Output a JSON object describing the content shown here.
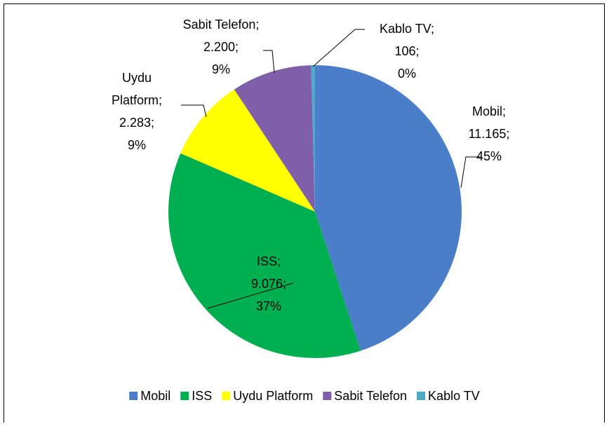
{
  "chart_data": {
    "type": "pie",
    "categories": [
      "Mobil",
      "ISS",
      "Uydu Platform",
      "Sabit Telefon",
      "Kablo TV"
    ],
    "values": [
      11165,
      9076,
      2283,
      2200,
      106
    ],
    "value_labels": [
      "11.165",
      "9.076",
      "2.283",
      "2.200",
      "106"
    ],
    "percents": [
      45,
      37,
      9,
      9,
      0
    ],
    "percent_labels": [
      "45%",
      "37%",
      "9%",
      "9%",
      "0%"
    ],
    "label_separator": ";",
    "colors": [
      "#4a7ec8",
      "#00b050",
      "#ffff00",
      "#7f5fa8",
      "#4bacc6"
    ],
    "legend": "bottom"
  }
}
